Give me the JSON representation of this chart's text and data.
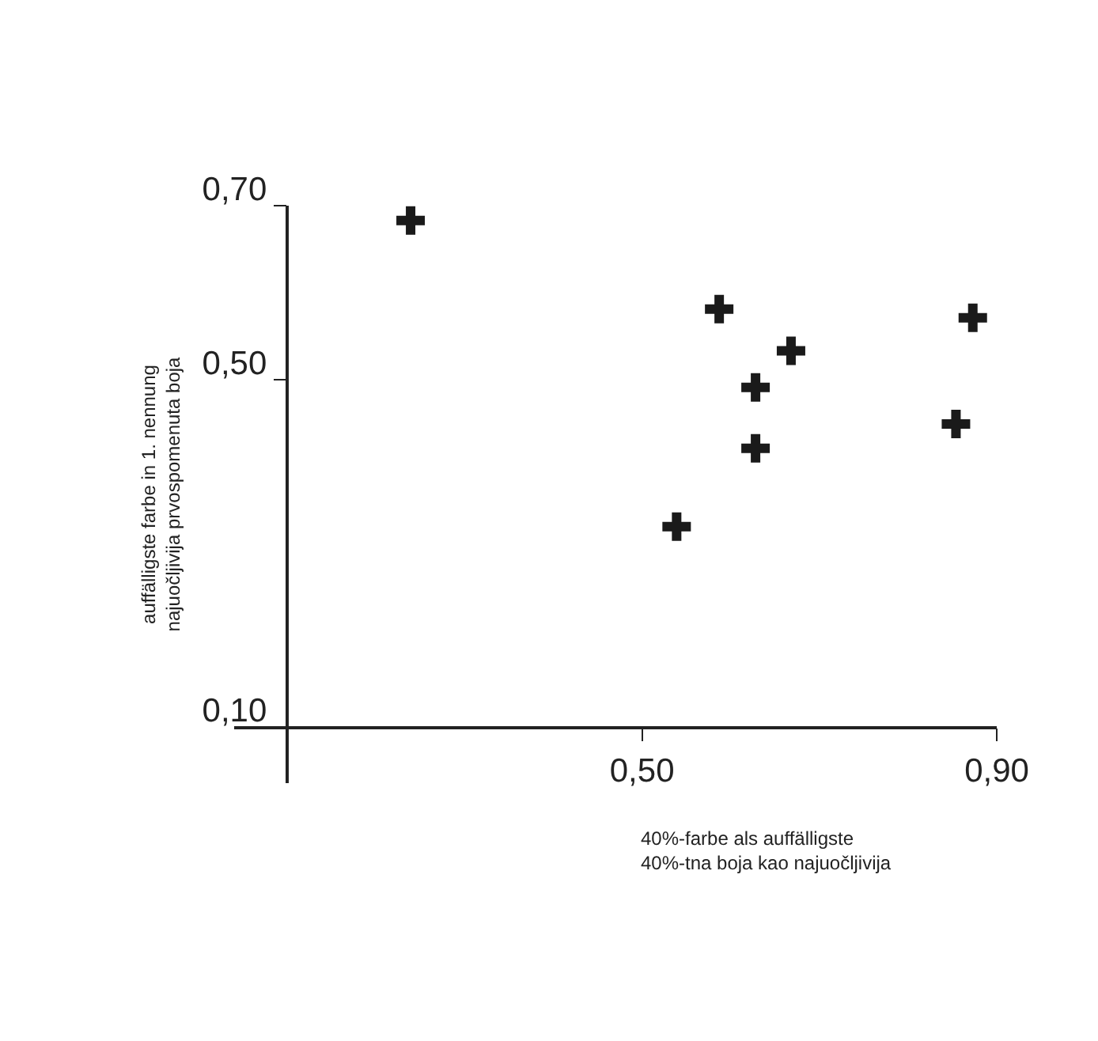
{
  "chart_data": {
    "type": "scatter",
    "xlabel": "40%-farbe als auffälligste\n40%-tna boja kao najuočljivija",
    "ylabel": "auffälligste farbe in 1. nennung\nnajuočljivija prvospomenuta boja",
    "x": [
      0.239,
      0.587,
      0.873,
      0.668,
      0.628,
      0.854,
      0.628,
      0.539
    ],
    "series": [
      {
        "color": "#1a1a1a",
        "values": [
          0.683,
          0.581,
          0.571,
          0.533,
          0.491,
          0.449,
          0.421,
          0.331
        ]
      }
    ],
    "xlim": [
      0.04,
      0.9
    ],
    "ylim": [
      0.036,
      0.7
    ],
    "xticks": [
      {
        "value": 0.1,
        "label": null
      },
      {
        "value": 0.5,
        "label": "0,50"
      },
      {
        "value": 0.9,
        "label": "0,90"
      }
    ],
    "yticks": [
      {
        "value": 0.1,
        "label": "0,10"
      },
      {
        "value": 0.5,
        "label": "0,50"
      },
      {
        "value": 0.7,
        "label": "0,70"
      }
    ],
    "marker": "cross"
  }
}
